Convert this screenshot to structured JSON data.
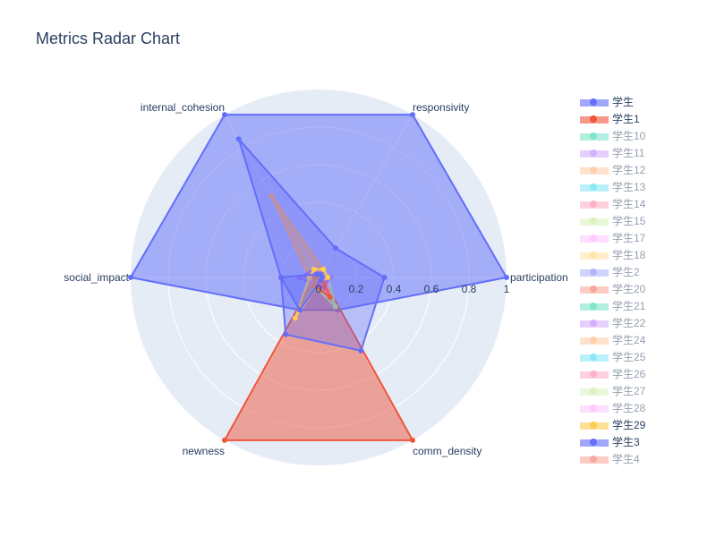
{
  "chart_data": {
    "type": "radar",
    "title": "Metrics Radar Chart",
    "axes": [
      "participation",
      "responsivity",
      "internal_cohesion",
      "social_impact",
      "newness",
      "comm_density"
    ],
    "radial_range": [
      0,
      1
    ],
    "radial_ticks": [
      "0",
      "0.2",
      "0.4",
      "0.6",
      "0.8",
      "1"
    ],
    "series": [
      {
        "name": "学生",
        "color": "#636efa",
        "visible": true,
        "values": [
          0.35,
          0.18,
          0.85,
          0.2,
          0.35,
          0.45
        ]
      },
      {
        "name": "学生1",
        "color": "#ef553b",
        "visible": true,
        "values": [
          0.02,
          0.02,
          0.02,
          0.02,
          0.05,
          0.12
        ]
      },
      {
        "name": "学生10",
        "color": "#00cc96",
        "visible": false,
        "values": [
          0.1,
          0.1,
          0.1,
          0.1,
          0.2,
          0.2
        ]
      },
      {
        "name": "学生11",
        "color": "#ab63fa",
        "visible": false,
        "values": [
          0.1,
          0.1,
          0.1,
          0.1,
          0.2,
          0.2
        ]
      },
      {
        "name": "学生12",
        "color": "#ffa15a",
        "visible": false,
        "values": [
          0.1,
          0.1,
          0.1,
          0.1,
          0.2,
          0.2
        ]
      },
      {
        "name": "学生13",
        "color": "#19d3f3",
        "visible": false,
        "values": [
          0.1,
          0.1,
          0.1,
          0.1,
          0.2,
          0.2
        ]
      },
      {
        "name": "学生14",
        "color": "#ff6692",
        "visible": false,
        "values": [
          0.1,
          0.1,
          0.1,
          0.1,
          0.2,
          0.2
        ]
      },
      {
        "name": "学生15",
        "color": "#b6e880",
        "visible": false,
        "values": [
          0.1,
          0.1,
          0.1,
          0.1,
          0.2,
          0.2
        ]
      },
      {
        "name": "学生17",
        "color": "#ff97ff",
        "visible": false,
        "values": [
          0.1,
          0.1,
          0.1,
          0.1,
          0.2,
          0.2
        ]
      },
      {
        "name": "学生18",
        "color": "#fecb52",
        "visible": false,
        "values": [
          0.1,
          0.1,
          0.1,
          0.1,
          0.2,
          0.2
        ]
      },
      {
        "name": "学生2",
        "color": "#636efa",
        "visible": false,
        "values": [
          1.0,
          1.0,
          1.0,
          1.0,
          0.0,
          0.0
        ]
      },
      {
        "name": "学生20",
        "color": "#ef553b",
        "visible": false,
        "values": [
          0.0,
          0.0,
          0.0,
          0.0,
          1.0,
          1.0
        ]
      },
      {
        "name": "学生21",
        "color": "#00cc96",
        "visible": false,
        "values": [
          0.1,
          0.1,
          0.1,
          0.1,
          0.2,
          0.2
        ]
      },
      {
        "name": "学生22",
        "color": "#ab63fa",
        "visible": false,
        "values": [
          0.1,
          0.1,
          0.1,
          0.1,
          0.2,
          0.2
        ]
      },
      {
        "name": "学生24",
        "color": "#ffa15a",
        "visible": false,
        "values": [
          0.1,
          0.1,
          0.1,
          0.1,
          0.2,
          0.2
        ]
      },
      {
        "name": "学生25",
        "color": "#19d3f3",
        "visible": false,
        "values": [
          0.1,
          0.1,
          0.1,
          0.1,
          0.2,
          0.2
        ]
      },
      {
        "name": "学生26",
        "color": "#ff6692",
        "visible": false,
        "values": [
          0.1,
          0.1,
          0.1,
          0.1,
          0.2,
          0.2
        ]
      },
      {
        "name": "学生27",
        "color": "#b6e880",
        "visible": false,
        "values": [
          0.15,
          0.05,
          0.05,
          0.05,
          0.15,
          0.15
        ]
      },
      {
        "name": "学生28",
        "color": "#ff97ff",
        "visible": false,
        "values": [
          0.1,
          0.1,
          0.1,
          0.1,
          0.2,
          0.2
        ]
      },
      {
        "name": "学生29",
        "color": "#fecb52",
        "visible": true,
        "values": [
          0.05,
          0.05,
          0.05,
          0.05,
          0.25,
          0.02
        ]
      },
      {
        "name": "学生3",
        "color": "#636efa",
        "visible": true,
        "values": [
          0.02,
          0.02,
          0.02,
          0.2,
          0.2,
          0.02
        ]
      },
      {
        "name": "学生4",
        "color": "#ef553b",
        "visible": false,
        "values": [
          0.1,
          0.1,
          0.1,
          0.1,
          0.2,
          0.2
        ]
      }
    ],
    "extra_shapes_in_plot": [
      {
        "name": "large-filled-blue",
        "color": "#636efa",
        "values": [
          1.0,
          1.0,
          1.0,
          1.0,
          0.2,
          0.2
        ]
      },
      {
        "name": "large-filled-red",
        "color": "#ef553b",
        "values": [
          0.02,
          0.02,
          0.02,
          0.02,
          1.0,
          1.0
        ]
      },
      {
        "name": "orange-small",
        "color": "#ffa15a",
        "values": [
          0.05,
          0.05,
          0.5,
          0.05,
          0.05,
          0.05
        ]
      },
      {
        "name": "green-small",
        "color": "#b6e880",
        "values": [
          0.05,
          0.05,
          0.05,
          0.05,
          0.05,
          0.18
        ]
      },
      {
        "name": "pink-small",
        "color": "#ff97ff",
        "values": [
          0.05,
          0.05,
          0.05,
          0.05,
          0.05,
          0.1
        ]
      },
      {
        "name": "purple-small",
        "color": "#ab63fa",
        "values": [
          0.06,
          0.04,
          0.05,
          0.1,
          0.05,
          0.06
        ]
      }
    ]
  }
}
